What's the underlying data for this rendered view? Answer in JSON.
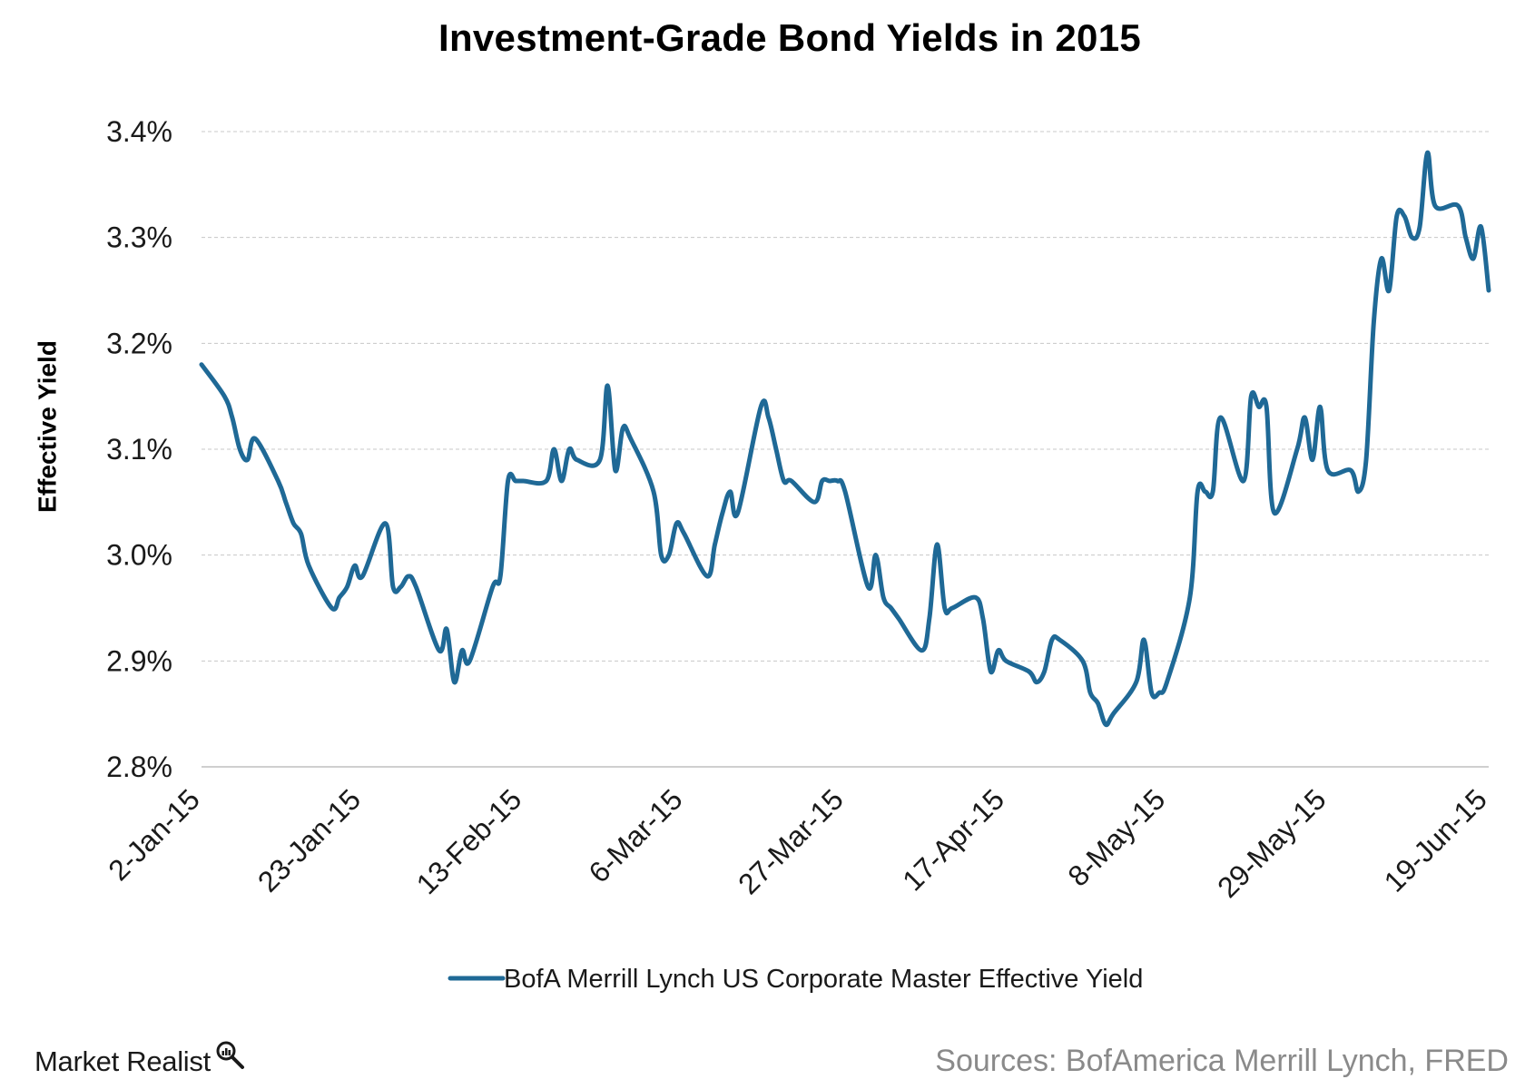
{
  "chart_data": {
    "type": "line",
    "title": "Investment-Grade Bond Yields in 2015",
    "ylabel": "Effective Yield",
    "xlabel": "",
    "ylim": [
      2.8,
      3.4
    ],
    "y_ticks": [
      "2.8%",
      "2.9%",
      "3.0%",
      "3.1%",
      "3.2%",
      "3.3%",
      "3.4%"
    ],
    "x_ticks": [
      "2-Jan-15",
      "23-Jan-15",
      "13-Feb-15",
      "6-Mar-15",
      "27-Mar-15",
      "17-Apr-15",
      "8-May-15",
      "29-May-15",
      "19-Jun-15"
    ],
    "grid": "horizontal dashed",
    "legend_position": "bottom",
    "series": [
      {
        "name": "BofA Merrill Lynch US Corporate Master Effective Yield",
        "color": "#1f6996",
        "points": [
          [
            "2015-01-02",
            3.18
          ],
          [
            "2015-01-05",
            3.15
          ],
          [
            "2015-01-06",
            3.13
          ],
          [
            "2015-01-07",
            3.1
          ],
          [
            "2015-01-08",
            3.09
          ],
          [
            "2015-01-09",
            3.11
          ],
          [
            "2015-01-12",
            3.07
          ],
          [
            "2015-01-13",
            3.05
          ],
          [
            "2015-01-14",
            3.03
          ],
          [
            "2015-01-15",
            3.02
          ],
          [
            "2015-01-16",
            2.99
          ],
          [
            "2015-01-19",
            2.95
          ],
          [
            "2015-01-20",
            2.96
          ],
          [
            "2015-01-21",
            2.97
          ],
          [
            "2015-01-22",
            2.99
          ],
          [
            "2015-01-23",
            2.98
          ],
          [
            "2015-01-26",
            3.03
          ],
          [
            "2015-01-27",
            2.97
          ],
          [
            "2015-01-28",
            2.97
          ],
          [
            "2015-01-29",
            2.98
          ],
          [
            "2015-01-30",
            2.97
          ],
          [
            "2015-02-02",
            2.91
          ],
          [
            "2015-02-03",
            2.93
          ],
          [
            "2015-02-04",
            2.88
          ],
          [
            "2015-02-05",
            2.91
          ],
          [
            "2015-02-06",
            2.9
          ],
          [
            "2015-02-09",
            2.97
          ],
          [
            "2015-02-10",
            2.98
          ],
          [
            "2015-02-11",
            3.07
          ],
          [
            "2015-02-12",
            3.07
          ],
          [
            "2015-02-13",
            3.07
          ],
          [
            "2015-02-16",
            3.07
          ],
          [
            "2015-02-17",
            3.1
          ],
          [
            "2015-02-18",
            3.07
          ],
          [
            "2015-02-19",
            3.1
          ],
          [
            "2015-02-20",
            3.09
          ],
          [
            "2015-02-23",
            3.09
          ],
          [
            "2015-02-24",
            3.16
          ],
          [
            "2015-02-25",
            3.08
          ],
          [
            "2015-02-26",
            3.12
          ],
          [
            "2015-02-27",
            3.11
          ],
          [
            "2015-03-02",
            3.06
          ],
          [
            "2015-03-03",
            3.0
          ],
          [
            "2015-03-04",
            3.0
          ],
          [
            "2015-03-05",
            3.03
          ],
          [
            "2015-03-06",
            3.02
          ],
          [
            "2015-03-09",
            2.98
          ],
          [
            "2015-03-10",
            3.01
          ],
          [
            "2015-03-11",
            3.04
          ],
          [
            "2015-03-12",
            3.06
          ],
          [
            "2015-03-13",
            3.04
          ],
          [
            "2015-03-16",
            3.14
          ],
          [
            "2015-03-17",
            3.13
          ],
          [
            "2015-03-18",
            3.1
          ],
          [
            "2015-03-19",
            3.07
          ],
          [
            "2015-03-20",
            3.07
          ],
          [
            "2015-03-23",
            3.05
          ],
          [
            "2015-03-24",
            3.07
          ],
          [
            "2015-03-25",
            3.07
          ],
          [
            "2015-03-26",
            3.07
          ],
          [
            "2015-03-27",
            3.06
          ],
          [
            "2015-03-30",
            2.97
          ],
          [
            "2015-03-31",
            3.0
          ],
          [
            "2015-04-01",
            2.96
          ],
          [
            "2015-04-02",
            2.95
          ],
          [
            "2015-04-03",
            2.94
          ],
          [
            "2015-04-06",
            2.91
          ],
          [
            "2015-04-07",
            2.94
          ],
          [
            "2015-04-08",
            3.01
          ],
          [
            "2015-04-09",
            2.95
          ],
          [
            "2015-04-10",
            2.95
          ],
          [
            "2015-04-13",
            2.96
          ],
          [
            "2015-04-14",
            2.94
          ],
          [
            "2015-04-15",
            2.89
          ],
          [
            "2015-04-16",
            2.91
          ],
          [
            "2015-04-17",
            2.9
          ],
          [
            "2015-04-20",
            2.89
          ],
          [
            "2015-04-21",
            2.88
          ],
          [
            "2015-04-22",
            2.89
          ],
          [
            "2015-04-23",
            2.92
          ],
          [
            "2015-04-24",
            2.92
          ],
          [
            "2015-04-27",
            2.9
          ],
          [
            "2015-04-28",
            2.87
          ],
          [
            "2015-04-29",
            2.86
          ],
          [
            "2015-04-30",
            2.84
          ],
          [
            "2015-05-01",
            2.85
          ],
          [
            "2015-05-04",
            2.88
          ],
          [
            "2015-05-05",
            2.92
          ],
          [
            "2015-05-06",
            2.87
          ],
          [
            "2015-05-07",
            2.87
          ],
          [
            "2015-05-08",
            2.88
          ],
          [
            "2015-05-11",
            2.96
          ],
          [
            "2015-05-12",
            3.06
          ],
          [
            "2015-05-13",
            3.06
          ],
          [
            "2015-05-14",
            3.06
          ],
          [
            "2015-05-15",
            3.13
          ],
          [
            "2015-05-18",
            3.07
          ],
          [
            "2015-05-19",
            3.15
          ],
          [
            "2015-05-20",
            3.14
          ],
          [
            "2015-05-21",
            3.14
          ],
          [
            "2015-05-22",
            3.04
          ],
          [
            "2015-05-25",
            3.1
          ],
          [
            "2015-05-26",
            3.13
          ],
          [
            "2015-05-27",
            3.09
          ],
          [
            "2015-05-28",
            3.14
          ],
          [
            "2015-05-29",
            3.08
          ],
          [
            "2015-06-01",
            3.08
          ],
          [
            "2015-06-02",
            3.06
          ],
          [
            "2015-06-03",
            3.09
          ],
          [
            "2015-06-04",
            3.22
          ],
          [
            "2015-06-05",
            3.28
          ],
          [
            "2015-06-06",
            3.25
          ],
          [
            "2015-06-07",
            3.32
          ],
          [
            "2015-06-08",
            3.32
          ],
          [
            "2015-06-09",
            3.3
          ],
          [
            "2015-06-10",
            3.31
          ],
          [
            "2015-06-11",
            3.38
          ],
          [
            "2015-06-12",
            3.33
          ],
          [
            "2015-06-15",
            3.33
          ],
          [
            "2015-06-16",
            3.3
          ],
          [
            "2015-06-17",
            3.28
          ],
          [
            "2015-06-18",
            3.31
          ],
          [
            "2015-06-19",
            3.25
          ]
        ]
      }
    ]
  },
  "footer": {
    "brand": "Market Realist",
    "brand_icon": "magnifier-icon",
    "source": "Sources: BofAmerica Merrill Lynch, FRED"
  }
}
